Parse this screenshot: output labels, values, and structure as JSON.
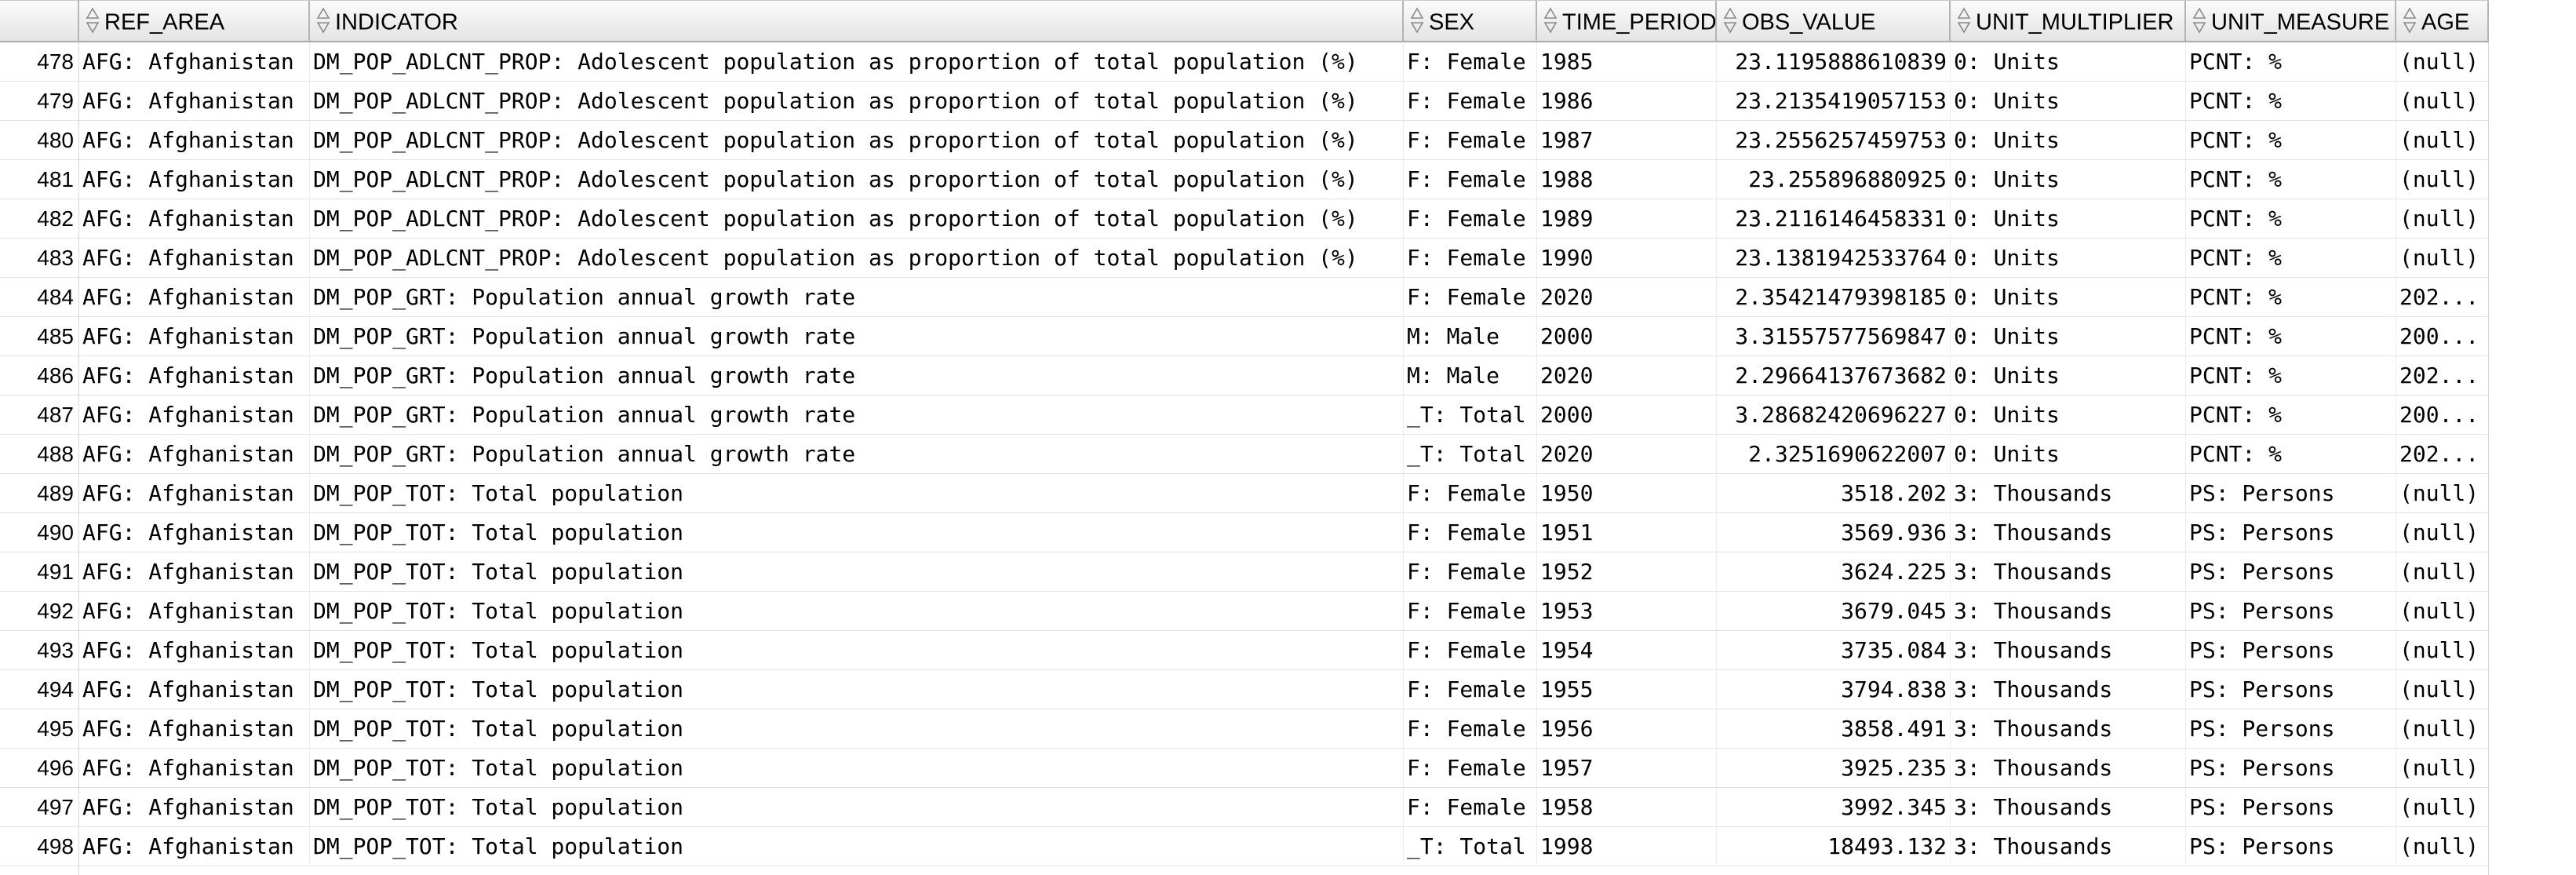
{
  "columns": [
    {
      "key": "row_num",
      "label": ""
    },
    {
      "key": "ref_area",
      "label": "REF_AREA"
    },
    {
      "key": "indicator",
      "label": "INDICATOR"
    },
    {
      "key": "sex",
      "label": "SEX"
    },
    {
      "key": "time_period",
      "label": "TIME_PERIOD"
    },
    {
      "key": "obs_value",
      "label": "OBS_VALUE"
    },
    {
      "key": "unit_multiplier",
      "label": "UNIT_MULTIPLIER"
    },
    {
      "key": "unit_measure",
      "label": "UNIT_MEASURE"
    },
    {
      "key": "age",
      "label": "AGE"
    }
  ],
  "rows": [
    [
      "478",
      "AFG: Afghanistan",
      "DM_POP_ADLCNT_PROP: Adolescent population as proportion of total population (%)",
      "F: Female",
      "1985",
      "23.1195888610839",
      "0: Units",
      "PCNT: %",
      "(null)"
    ],
    [
      "479",
      "AFG: Afghanistan",
      "DM_POP_ADLCNT_PROP: Adolescent population as proportion of total population (%)",
      "F: Female",
      "1986",
      "23.2135419057153",
      "0: Units",
      "PCNT: %",
      "(null)"
    ],
    [
      "480",
      "AFG: Afghanistan",
      "DM_POP_ADLCNT_PROP: Adolescent population as proportion of total population (%)",
      "F: Female",
      "1987",
      "23.2556257459753",
      "0: Units",
      "PCNT: %",
      "(null)"
    ],
    [
      "481",
      "AFG: Afghanistan",
      "DM_POP_ADLCNT_PROP: Adolescent population as proportion of total population (%)",
      "F: Female",
      "1988",
      "23.255896880925",
      "0: Units",
      "PCNT: %",
      "(null)"
    ],
    [
      "482",
      "AFG: Afghanistan",
      "DM_POP_ADLCNT_PROP: Adolescent population as proportion of total population (%)",
      "F: Female",
      "1989",
      "23.2116146458331",
      "0: Units",
      "PCNT: %",
      "(null)"
    ],
    [
      "483",
      "AFG: Afghanistan",
      "DM_POP_ADLCNT_PROP: Adolescent population as proportion of total population (%)",
      "F: Female",
      "1990",
      "23.1381942533764",
      "0: Units",
      "PCNT: %",
      "(null)"
    ],
    [
      "484",
      "AFG: Afghanistan",
      "DM_POP_GRT: Population annual growth rate",
      "F: Female",
      "2020",
      "2.35421479398185",
      "0: Units",
      "PCNT: %",
      "202..."
    ],
    [
      "485",
      "AFG: Afghanistan",
      "DM_POP_GRT: Population annual growth rate",
      "M: Male",
      "2000",
      "3.31557577569847",
      "0: Units",
      "PCNT: %",
      "200..."
    ],
    [
      "486",
      "AFG: Afghanistan",
      "DM_POP_GRT: Population annual growth rate",
      "M: Male",
      "2020",
      "2.29664137673682",
      "0: Units",
      "PCNT: %",
      "202..."
    ],
    [
      "487",
      "AFG: Afghanistan",
      "DM_POP_GRT: Population annual growth rate",
      "_T: Total",
      "2000",
      "3.28682420696227",
      "0: Units",
      "PCNT: %",
      "200..."
    ],
    [
      "488",
      "AFG: Afghanistan",
      "DM_POP_GRT: Population annual growth rate",
      "_T: Total",
      "2020",
      "2.3251690622007",
      "0: Units",
      "PCNT: %",
      "202..."
    ],
    [
      "489",
      "AFG: Afghanistan",
      "DM_POP_TOT: Total population",
      "F: Female",
      "1950",
      "3518.202",
      "3: Thousands",
      "PS: Persons",
      "(null)"
    ],
    [
      "490",
      "AFG: Afghanistan",
      "DM_POP_TOT: Total population",
      "F: Female",
      "1951",
      "3569.936",
      "3: Thousands",
      "PS: Persons",
      "(null)"
    ],
    [
      "491",
      "AFG: Afghanistan",
      "DM_POP_TOT: Total population",
      "F: Female",
      "1952",
      "3624.225",
      "3: Thousands",
      "PS: Persons",
      "(null)"
    ],
    [
      "492",
      "AFG: Afghanistan",
      "DM_POP_TOT: Total population",
      "F: Female",
      "1953",
      "3679.045",
      "3: Thousands",
      "PS: Persons",
      "(null)"
    ],
    [
      "493",
      "AFG: Afghanistan",
      "DM_POP_TOT: Total population",
      "F: Female",
      "1954",
      "3735.084",
      "3: Thousands",
      "PS: Persons",
      "(null)"
    ],
    [
      "494",
      "AFG: Afghanistan",
      "DM_POP_TOT: Total population",
      "F: Female",
      "1955",
      "3794.838",
      "3: Thousands",
      "PS: Persons",
      "(null)"
    ],
    [
      "495",
      "AFG: Afghanistan",
      "DM_POP_TOT: Total population",
      "F: Female",
      "1956",
      "3858.491",
      "3: Thousands",
      "PS: Persons",
      "(null)"
    ],
    [
      "496",
      "AFG: Afghanistan",
      "DM_POP_TOT: Total population",
      "F: Female",
      "1957",
      "3925.235",
      "3: Thousands",
      "PS: Persons",
      "(null)"
    ],
    [
      "497",
      "AFG: Afghanistan",
      "DM_POP_TOT: Total population",
      "F: Female",
      "1958",
      "3992.345",
      "3: Thousands",
      "PS: Persons",
      "(null)"
    ],
    [
      "498",
      "AFG: Afghanistan",
      "DM_POP_TOT: Total population",
      "_T: Total",
      "1998",
      "18493.132",
      "3: Thousands",
      "PS: Persons",
      "(null)"
    ]
  ],
  "icons": {
    "sort": "sort-arrows-icon"
  }
}
